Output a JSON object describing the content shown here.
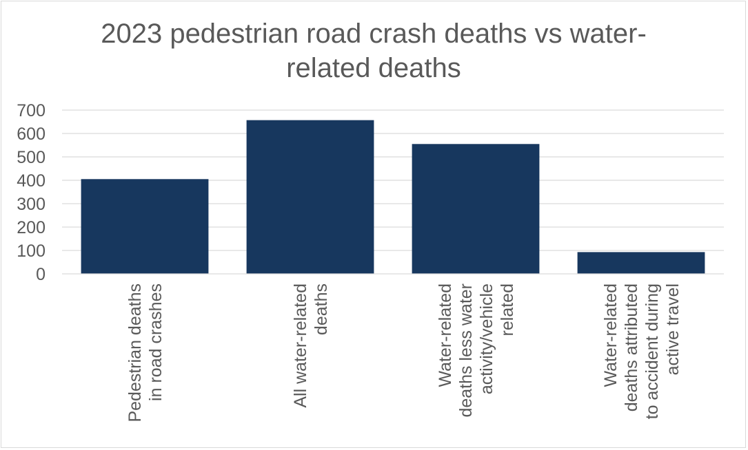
{
  "chart_data": {
    "type": "bar",
    "title_lines": [
      "2023 pedestrian road crash deaths vs water-",
      "related deaths"
    ],
    "categories": [
      [
        "Pedestrian deaths",
        "in road crashes"
      ],
      [
        "All water-related",
        "deaths"
      ],
      [
        "Water-related",
        "deaths less water",
        "activity/vehicle",
        "related"
      ],
      [
        "Water-related",
        "deaths attributed",
        "to accident during",
        "active travel"
      ]
    ],
    "values": [
      405,
      657,
      555,
      93
    ],
    "ylim": [
      0,
      700
    ],
    "yticks": [
      "0",
      "100",
      "200",
      "300",
      "400",
      "500",
      "600",
      "700"
    ],
    "xlabel": "",
    "ylabel": "",
    "grid": true,
    "legend": "none",
    "bar_color": "#17375e"
  }
}
